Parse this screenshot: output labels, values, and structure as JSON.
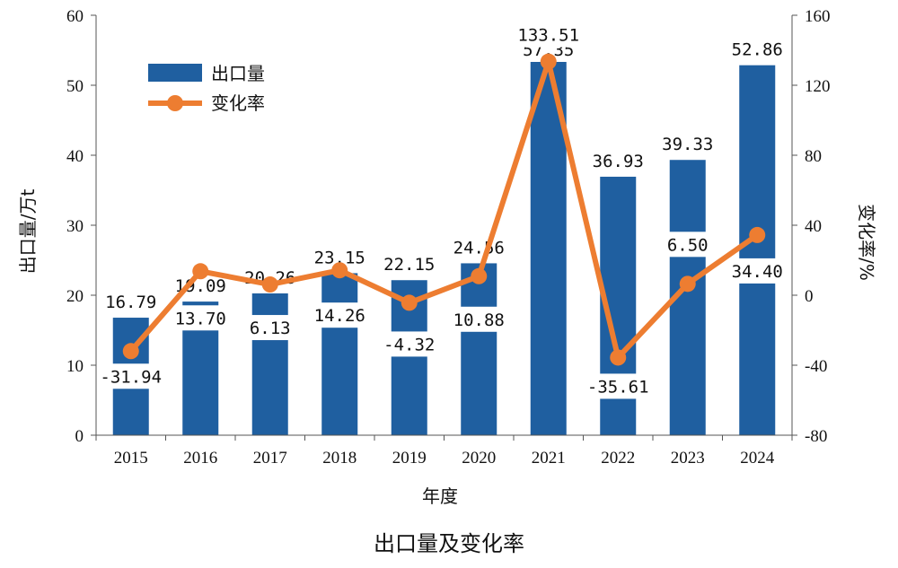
{
  "chart_data": {
    "type": "bar+line",
    "title": "出口量及变化率",
    "xlabel": "年度",
    "ylabel_left": "出口量/万t",
    "ylabel_right": "变化率/%",
    "categories": [
      "2015",
      "2016",
      "2017",
      "2018",
      "2019",
      "2020",
      "2021",
      "2022",
      "2023",
      "2024"
    ],
    "series": [
      {
        "name": "出口量",
        "type": "bar",
        "axis": "left",
        "color": "#1f5fa0",
        "values": [
          16.79,
          19.09,
          20.26,
          23.15,
          22.15,
          24.56,
          57.35,
          36.93,
          39.33,
          52.86
        ],
        "labels": [
          "16.79",
          "19.09",
          "20.26",
          "23.15",
          "22.15",
          "24.56",
          "57.35",
          "36.93",
          "39.33",
          "52.86"
        ]
      },
      {
        "name": "变化率",
        "type": "line",
        "axis": "right",
        "color": "#ed7d31",
        "values": [
          -31.94,
          13.7,
          6.13,
          14.26,
          -4.32,
          10.88,
          133.51,
          -35.61,
          6.5,
          34.4
        ],
        "labels": [
          "-31.94",
          "13.70",
          "6.13",
          "14.26",
          "-4.32",
          "10.88",
          "133.51",
          "-35.61",
          "6.50",
          "34.40"
        ]
      }
    ],
    "ylim_left": [
      0,
      60
    ],
    "ylim_right": [
      -80,
      160
    ],
    "yticks_left": [
      "0",
      "10",
      "20",
      "30",
      "40",
      "50",
      "60"
    ],
    "yticks_right": [
      "-80",
      "-40",
      "0",
      "40",
      "80",
      "120",
      "160"
    ],
    "legend": [
      {
        "label": "出口量",
        "kind": "bar"
      },
      {
        "label": "变化率",
        "kind": "line"
      }
    ],
    "legend_position": "top-left"
  }
}
